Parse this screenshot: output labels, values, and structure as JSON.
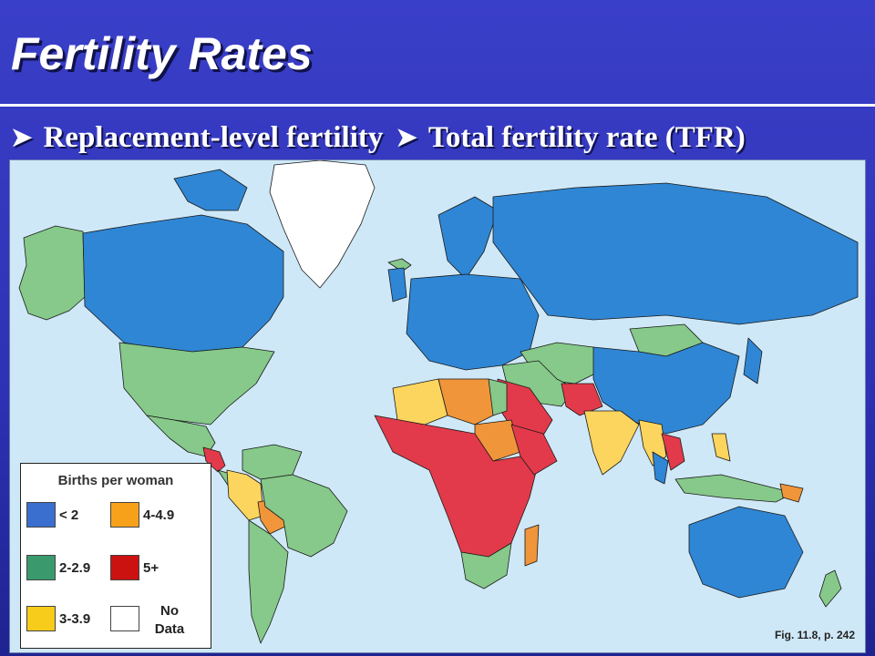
{
  "title": "Fertility Rates",
  "bullets": [
    "Replacement-level fertility",
    "Total fertility rate (TFR)"
  ],
  "legend": {
    "title": "Births per woman",
    "items": [
      {
        "label": "< 2",
        "color": "#3a6fcf"
      },
      {
        "label": "2-2.9",
        "color": "#3a9a6e"
      },
      {
        "label": "3-3.9",
        "color": "#f7cc1a"
      },
      {
        "label": "4-4.9",
        "color": "#f7a11a"
      },
      {
        "label": "5+",
        "color": "#cc1111"
      },
      {
        "label": "No Data",
        "color": "#ffffff"
      }
    ]
  },
  "map_colors": {
    "ocean": "#cfe8f7",
    "low": "#2f86d4",
    "replacement": "#86c98a",
    "mid": "#fcd55e",
    "high": "#f0953a",
    "very_high": "#e23a4a",
    "nodata": "#ffffff",
    "border": "#1a1a1a"
  },
  "caption": "Fig. 11.8, p. 242"
}
